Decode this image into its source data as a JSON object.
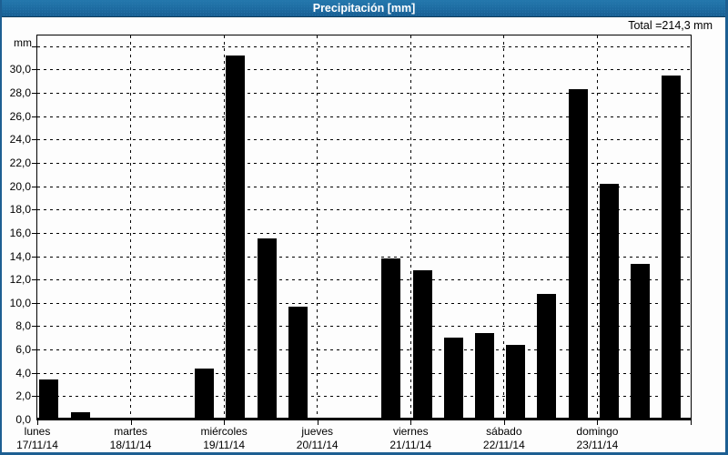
{
  "window": {
    "title": "Precipitación [mm]"
  },
  "summary": {
    "total_label": "Total =214,3 mm"
  },
  "colors": {
    "titlebar": "#1d6ba1",
    "frame": "#1d5f92",
    "background": "#fdfdfd",
    "bar": "#000000",
    "title_text": "#ffffff"
  },
  "chart_data": {
    "type": "bar",
    "title": "Precipitación [mm]",
    "ylabel": "mm",
    "unit_label": "mm",
    "total_text": "Total =214,3 mm",
    "total_value_mm": 214.3,
    "ylim": [
      0,
      33
    ],
    "y_tick_step": 2,
    "y_tick_values": [
      0,
      2,
      4,
      6,
      8,
      10,
      12,
      14,
      16,
      18,
      20,
      22,
      24,
      26,
      28,
      30
    ],
    "y_tick_labels": [
      "0,0",
      "2,0",
      "4,0",
      "6,0",
      "8,0",
      "10,0",
      "12,0",
      "14,0",
      "16,0",
      "18,0",
      "20,0",
      "22,0",
      "24,0",
      "26,0",
      "28,0",
      "30,0"
    ],
    "unlabeled_top_gridline_value": 32,
    "grid": "dashed",
    "legend": "none",
    "bar_color": "#000000",
    "hours_total": 168,
    "days": [
      {
        "name": "lunes",
        "date": "17/11/14"
      },
      {
        "name": "martes",
        "date": "18/11/14"
      },
      {
        "name": "miércoles",
        "date": "19/11/14"
      },
      {
        "name": "jueves",
        "date": "20/11/14"
      },
      {
        "name": "viernes",
        "date": "21/11/14"
      },
      {
        "name": "sábado",
        "date": "22/11/14"
      },
      {
        "name": "domingo",
        "date": "23/11/14"
      }
    ],
    "bars": [
      {
        "hour": 3,
        "value": 3.4
      },
      {
        "hour": 11,
        "value": 0.6
      },
      {
        "hour": 43,
        "value": 4.4
      },
      {
        "hour": 51,
        "value": 31.2
      },
      {
        "hour": 59,
        "value": 15.5
      },
      {
        "hour": 67,
        "value": 9.7
      },
      {
        "hour": 91,
        "value": 13.8
      },
      {
        "hour": 99,
        "value": 12.8
      },
      {
        "hour": 107,
        "value": 7.0
      },
      {
        "hour": 115,
        "value": 7.4
      },
      {
        "hour": 123,
        "value": 6.4
      },
      {
        "hour": 131,
        "value": 10.8
      },
      {
        "hour": 139,
        "value": 28.3
      },
      {
        "hour": 147,
        "value": 20.2
      },
      {
        "hour": 155,
        "value": 13.3
      },
      {
        "hour": 163,
        "value": 29.5
      }
    ]
  }
}
